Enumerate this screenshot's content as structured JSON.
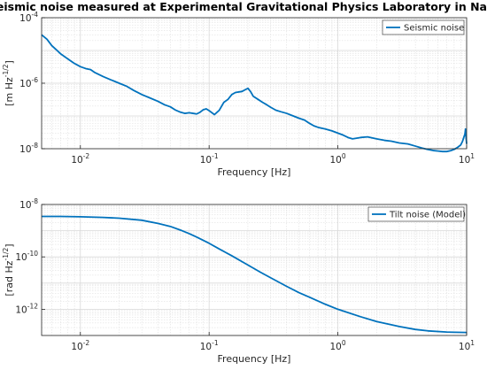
{
  "figure_title": "Seismic noise measured at Experimental Gravitational Physics Laboratory in Naples",
  "colors": {
    "series": "#0072bd",
    "grid": "#d9d9d9",
    "axis": "#262626"
  },
  "chart_data": [
    {
      "type": "line",
      "title": "Seismic noise measured at Experimental Gravitational Physics Laboratory in Naples",
      "xlabel": "Frequency [Hz]",
      "ylabel_main": "[m Hz",
      "ylabel_exp": "-1/2",
      "ylabel_end": "]",
      "x_scale": "log",
      "y_scale": "log",
      "xlim": [
        0.005,
        10
      ],
      "ylim": [
        1e-08,
        0.0001
      ],
      "grid": true,
      "legend": "top-right",
      "x_ticks": [
        {
          "value": 0.01,
          "label": "10",
          "exp": "-2"
        },
        {
          "value": 0.1,
          "label": "10",
          "exp": "-1"
        },
        {
          "value": 1,
          "label": "10",
          "exp": "0"
        },
        {
          "value": 10,
          "label": "10",
          "exp": "1"
        }
      ],
      "y_ticks": [
        {
          "value": 1e-08,
          "label": "10",
          "exp": "-8"
        },
        {
          "value": 1e-06,
          "label": "10",
          "exp": "-6"
        },
        {
          "value": 0.0001,
          "label": "10",
          "exp": "-4"
        }
      ],
      "series": [
        {
          "name": "Seismic noise",
          "color": "#0072bd",
          "x": [
            0.005,
            0.0055,
            0.006,
            0.0065,
            0.007,
            0.008,
            0.009,
            0.01,
            0.011,
            0.012,
            0.013,
            0.015,
            0.017,
            0.02,
            0.023,
            0.026,
            0.03,
            0.035,
            0.04,
            0.045,
            0.05,
            0.055,
            0.06,
            0.065,
            0.07,
            0.075,
            0.08,
            0.085,
            0.09,
            0.095,
            0.1,
            0.11,
            0.12,
            0.13,
            0.14,
            0.15,
            0.16,
            0.18,
            0.2,
            0.21,
            0.22,
            0.24,
            0.26,
            0.28,
            0.3,
            0.33,
            0.36,
            0.4,
            0.45,
            0.5,
            0.55,
            0.6,
            0.65,
            0.7,
            0.8,
            0.9,
            1.0,
            1.1,
            1.2,
            1.3,
            1.5,
            1.7,
            2.0,
            2.3,
            2.6,
            3.0,
            3.5,
            4.0,
            4.5,
            5.0,
            5.5,
            6.0,
            6.5,
            7.0,
            7.5,
            8.0,
            8.5,
            9.0,
            9.3,
            9.5,
            9.7,
            9.8,
            9.9,
            10.0
          ],
          "y": [
            3e-05,
            2.2e-05,
            1.4e-05,
            1.05e-05,
            8e-06,
            5.5e-06,
            4e-06,
            3.2e-06,
            2.8e-06,
            2.6e-06,
            2.1e-06,
            1.6e-06,
            1.3e-06,
            1e-06,
            8e-07,
            6e-07,
            4.5e-07,
            3.5e-07,
            2.8e-07,
            2.2e-07,
            1.9e-07,
            1.5e-07,
            1.3e-07,
            1.2e-07,
            1.25e-07,
            1.2e-07,
            1.15e-07,
            1.3e-07,
            1.55e-07,
            1.65e-07,
            1.45e-07,
            1.1e-07,
            1.5e-07,
            2.6e-07,
            3.2e-07,
            4.5e-07,
            5.2e-07,
            5.6e-07,
            7e-07,
            5.5e-07,
            4e-07,
            3.2e-07,
            2.6e-07,
            2.2e-07,
            1.85e-07,
            1.5e-07,
            1.35e-07,
            1.2e-07,
            1e-07,
            8.5e-08,
            7.5e-08,
            6e-08,
            5e-08,
            4.5e-08,
            4e-08,
            3.5e-08,
            3e-08,
            2.6e-08,
            2.2e-08,
            2e-08,
            2.2e-08,
            2.3e-08,
            2e-08,
            1.8e-08,
            1.7e-08,
            1.5e-08,
            1.4e-08,
            1.2e-08,
            1.05e-08,
            9.5e-09,
            8.8e-09,
            8.5e-09,
            8.2e-09,
            8.2e-09,
            8.7e-09,
            9.5e-09,
            1.1e-08,
            1.3e-08,
            1.7e-08,
            2.2e-08,
            2.8e-08,
            4e-08,
            2.2e-08,
            1.4e-08
          ]
        }
      ]
    },
    {
      "type": "line",
      "xlabel": "Frequency [Hz]",
      "ylabel_main": "[rad Hz",
      "ylabel_exp": "-1/2",
      "ylabel_end": "]",
      "x_scale": "log",
      "y_scale": "log",
      "xlim": [
        0.005,
        10
      ],
      "ylim": [
        1e-13,
        1e-08
      ],
      "grid": true,
      "legend": "top-right",
      "x_ticks": [
        {
          "value": 0.01,
          "label": "10",
          "exp": "-2"
        },
        {
          "value": 0.1,
          "label": "10",
          "exp": "-1"
        },
        {
          "value": 1,
          "label": "10",
          "exp": "0"
        },
        {
          "value": 10,
          "label": "10",
          "exp": "1"
        }
      ],
      "y_ticks": [
        {
          "value": 1e-12,
          "label": "10",
          "exp": "-12"
        },
        {
          "value": 1e-10,
          "label": "10",
          "exp": "-10"
        },
        {
          "value": 1e-08,
          "label": "10",
          "exp": "-8"
        }
      ],
      "series": [
        {
          "name": "Tilt noise (Model)",
          "color": "#0072bd",
          "x": [
            0.005,
            0.007,
            0.01,
            0.015,
            0.02,
            0.03,
            0.04,
            0.05,
            0.06,
            0.07,
            0.08,
            0.1,
            0.12,
            0.15,
            0.2,
            0.25,
            0.3,
            0.4,
            0.5,
            0.6,
            0.8,
            1.0,
            1.5,
            2.0,
            3.0,
            4.0,
            5.0,
            7.0,
            10.0
          ],
          "y": [
            3.5e-09,
            3.5e-09,
            3.4e-09,
            3.2e-09,
            3e-09,
            2.5e-09,
            1.9e-09,
            1.45e-09,
            1.05e-09,
            7.7e-10,
            5.7e-10,
            3.3e-10,
            2e-10,
            1.1e-10,
            4.9e-11,
            2.6e-11,
            1.6e-11,
            7.5e-12,
            4.3e-12,
            2.9e-12,
            1.55e-12,
            1e-12,
            5.2e-13,
            3.4e-13,
            2.2e-13,
            1.7e-13,
            1.5e-13,
            1.35e-13,
            1.3e-13
          ]
        }
      ]
    }
  ]
}
